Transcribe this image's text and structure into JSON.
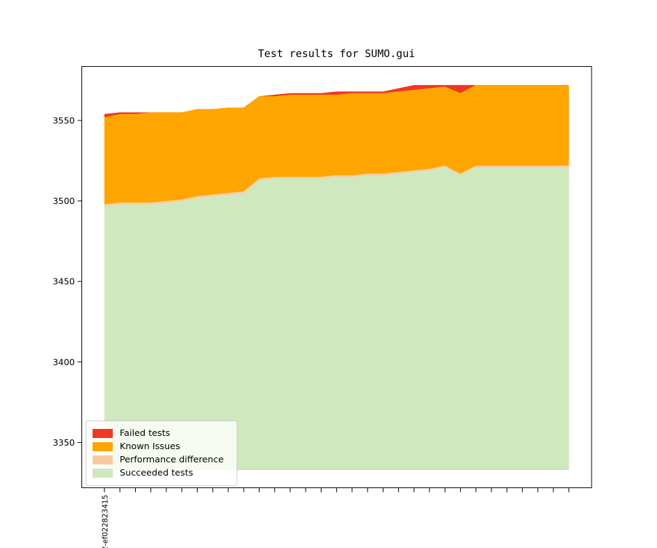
{
  "figure": {
    "background": "#ffffff",
    "axis_color": "#000000",
    "tick_label_color": "#000000"
  },
  "chart_data": {
    "type": "area",
    "stacked": true,
    "title": "Test results for SUMO.gui",
    "grid": false,
    "legend_position": "lower left",
    "ylim": [
      3322,
      3583
    ],
    "yticks": [
      3350,
      3400,
      3450,
      3500,
      3550
    ],
    "x_tick_count": 31,
    "x_first_tick_label": "2-ef022823415",
    "baseline": 3333,
    "series": [
      {
        "name": "Failed tests",
        "color": "#f03723",
        "cumulative_top": [
          3554,
          3555,
          3555,
          3555,
          3555,
          3555,
          3557,
          3557,
          3558,
          3558,
          3565,
          3566,
          3567,
          3567,
          3567,
          3568,
          3568,
          3568,
          3568,
          3570,
          3572,
          3572,
          3572,
          3572,
          3572,
          3572,
          3572,
          3572,
          3572,
          3572,
          3572
        ]
      },
      {
        "name": "Known Issues",
        "color": "#ffa500",
        "cumulative_top": [
          3552,
          3554,
          3554,
          3555,
          3555,
          3555,
          3557,
          3557,
          3558,
          3558,
          3565,
          3565,
          3566,
          3566,
          3566,
          3566,
          3567,
          3567,
          3567,
          3568,
          3569,
          3570,
          3571,
          3567,
          3572,
          3572,
          3572,
          3572,
          3572,
          3572,
          3572
        ]
      },
      {
        "name": "Performance difference",
        "color": "#f9c9a2",
        "cumulative_top": [
          3498,
          3499,
          3499,
          3499,
          3500,
          3501,
          3503,
          3504,
          3505,
          3506,
          3514,
          3515,
          3515,
          3515,
          3515,
          3516,
          3516,
          3517,
          3517,
          3518,
          3519,
          3520,
          3522,
          3517,
          3522,
          3522,
          3522,
          3522,
          3522,
          3522,
          3522
        ]
      },
      {
        "name": "Succeeded tests",
        "color": "#cfe8bd",
        "cumulative_top": [
          3497,
          3498,
          3498,
          3498,
          3499,
          3500,
          3502,
          3503,
          3504,
          3505,
          3513,
          3514,
          3514,
          3514,
          3514,
          3515,
          3515,
          3516,
          3516,
          3517,
          3518,
          3519,
          3521,
          3516,
          3521,
          3521,
          3521,
          3521,
          3521,
          3521,
          3521
        ]
      }
    ],
    "legend_items": [
      {
        "label": "Failed tests",
        "color": "#f03723"
      },
      {
        "label": "Known Issues",
        "color": "#ffa500"
      },
      {
        "label": "Performance difference",
        "color": "#f9c9a2"
      },
      {
        "label": "Succeeded tests",
        "color": "#cfe8bd"
      }
    ]
  }
}
